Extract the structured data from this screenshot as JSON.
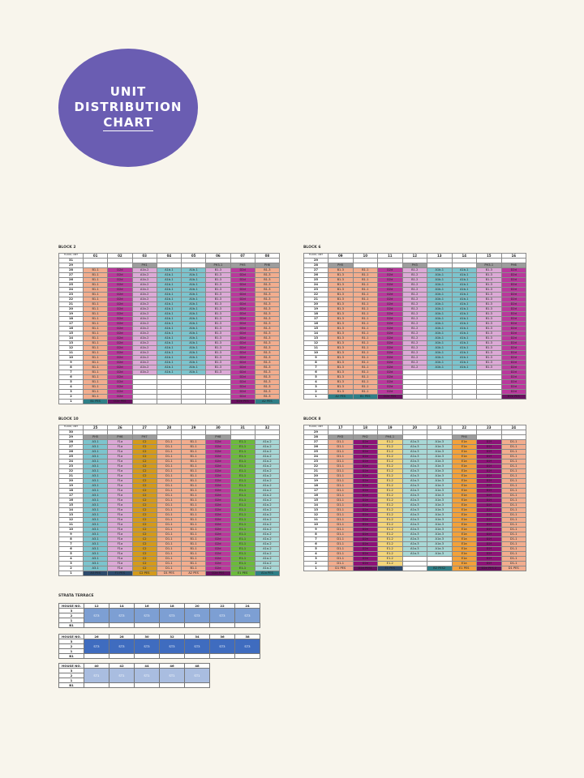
{
  "title": {
    "line1": "UNIT",
    "line2": "DISTRIBUTION",
    "line3": "CHART"
  },
  "corner_label": {
    "top": "UNIT",
    "bottom": "FLOOR"
  },
  "chart_data": {
    "type": "table",
    "blocks": [
      {
        "name": "BLOCK 2",
        "columns": [
          "01",
          "02",
          "03",
          "04",
          "05",
          "06",
          "07",
          "08"
        ],
        "floors": [
          "31",
          "29",
          "28",
          "27",
          "26",
          "25",
          "24",
          "23",
          "22",
          "21",
          "20",
          "19",
          "18",
          "17",
          "16",
          "15",
          "14",
          "13",
          "12",
          "11",
          "10",
          "9",
          "8",
          "7",
          "6",
          "5",
          "4",
          "3",
          "2",
          "1"
        ],
        "top_row": [
          "",
          "",
          "PH1",
          "",
          "",
          "PH3-1",
          "PH5",
          "PH6"
        ],
        "bottom_row": [
          "B1 PES",
          "D2e PES",
          "",
          "",
          "",
          "",
          "D2e PES",
          "A2 PES"
        ],
        "column_colors": [
          "peach",
          "mag",
          "pink",
          "teal",
          "teal",
          "pink",
          "mag",
          "peach"
        ],
        "sample_labels": [
          "B1-1",
          "D2d",
          "A1b-2",
          "A1b-1",
          "A1b-1",
          "B1-3",
          "D2d",
          "B1-3"
        ]
      },
      {
        "name": "BLOCK 6",
        "columns": [
          "09",
          "10",
          "11",
          "12",
          "13",
          "14",
          "15",
          "16"
        ],
        "floors": [
          "29",
          "28",
          "27",
          "26",
          "25",
          "24",
          "23",
          "22",
          "21",
          "20",
          "19",
          "18",
          "17",
          "16",
          "15",
          "14",
          "13",
          "12",
          "11",
          "10",
          "9",
          "8",
          "7",
          "6",
          "5",
          "4",
          "3",
          "2",
          "1"
        ],
        "top_row": [
          "PH5",
          "",
          "",
          "PH3",
          "",
          "",
          "PH3-1",
          "PH6"
        ],
        "bottom_row": [
          "A2 PES",
          "B1 PES",
          "D2e PES",
          "",
          "",
          "",
          "",
          "D2e PES"
        ],
        "column_colors": [
          "peach",
          "peach",
          "mag",
          "pink",
          "teal",
          "teal",
          "pink",
          "mag"
        ],
        "sample_labels": [
          "B1-3",
          "B1-1",
          "D2d",
          "B1-2",
          "A1b-1",
          "A1b-1",
          "B1-3",
          "D2d"
        ]
      },
      {
        "name": "BLOCK 10",
        "columns": [
          "25",
          "26",
          "27",
          "28",
          "29",
          "30",
          "31",
          "32"
        ],
        "floors": [
          "30",
          "29",
          "28",
          "27",
          "26",
          "25",
          "24",
          "23",
          "22",
          "21",
          "20",
          "19",
          "18",
          "17",
          "16",
          "15",
          "14",
          "13",
          "12",
          "11",
          "10",
          "9",
          "8",
          "7",
          "6",
          "5",
          "4",
          "3",
          "2",
          "1"
        ],
        "top_row": [
          "PH5",
          "PH6",
          "PH7",
          "",
          "",
          "PH8",
          "",
          ""
        ],
        "bottom_row": [
          "A3 PES",
          "F1 PES",
          "C2 PES",
          "D1 PES",
          "A2 PES",
          "D2e PES",
          "E1 PES",
          "A1a PES"
        ],
        "column_colors": [
          "teal",
          "pink",
          "gold",
          "peach",
          "peach",
          "mag",
          "green",
          "lteal"
        ],
        "sample_labels": [
          "A3-1",
          "F1a",
          "C2",
          "D1-1",
          "B1-1",
          "D2d",
          "E1-1",
          "A1a-2"
        ]
      },
      {
        "name": "BLOCK 8",
        "columns": [
          "17",
          "18",
          "19",
          "20",
          "21",
          "22",
          "23",
          "24"
        ],
        "floors": [
          "29",
          "28",
          "27",
          "26",
          "25",
          "24",
          "23",
          "22",
          "21",
          "20",
          "19",
          "18",
          "17",
          "16",
          "15",
          "14",
          "13",
          "12",
          "11",
          "10",
          "9",
          "8",
          "7",
          "6",
          "5",
          "4",
          "3",
          "2",
          "1"
        ],
        "top_row": [
          "PH3",
          "PH2",
          "PH4-1",
          "",
          "",
          "PH4",
          "",
          ""
        ],
        "bottom_row": [
          "D1 PES",
          "D2e PES1",
          "E1 PES",
          "",
          "B2 PES2",
          "E1 PES",
          "D2e PES 2",
          "D1 PES"
        ],
        "column_colors": [
          "peach",
          "dmag",
          "yellow",
          "lteal",
          "lteal",
          "orange",
          "dmag",
          "peach"
        ],
        "sample_labels": [
          "D1-1",
          "D2e",
          "E1-2",
          "A1a-3",
          "A1a-3",
          "E1a",
          "D2f",
          "D1-1"
        ]
      }
    ],
    "strata_terrace": {
      "title": "STRATA TERRACE",
      "header_label": "HOUSE NO.",
      "floor_labels": [
        "3",
        "2",
        "1",
        "B1"
      ],
      "groups": [
        {
          "houses": [
            "12",
            "14",
            "16",
            "18",
            "20",
            "22",
            "24"
          ],
          "label": "ST3",
          "color": "#7d9fd3"
        },
        {
          "houses": [
            "26",
            "28",
            "30",
            "32",
            "34",
            "36",
            "38"
          ],
          "label": "ST3",
          "color": "#3f6cbf"
        },
        {
          "houses": [
            "40",
            "42",
            "44",
            "46",
            "48"
          ],
          "label": "ST1",
          "color": "#a9bde0"
        }
      ]
    }
  }
}
